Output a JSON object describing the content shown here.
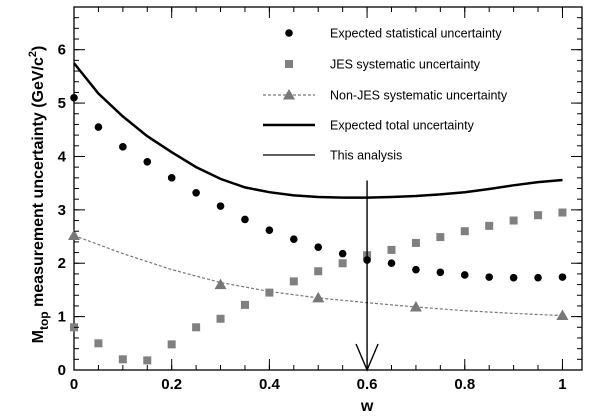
{
  "chart_data": {
    "type": "scatter",
    "title": "",
    "xlabel": "w",
    "ylabel": "M_top measurement uncertainty (GeV/c²)",
    "ylabel_parts": {
      "main": "M",
      "subscript": "top",
      "rest": " measurement uncertainty (GeV/c",
      "superscript": "2",
      "close": ")"
    },
    "xlim": [
      0,
      1.04
    ],
    "ylim": [
      0,
      6.8
    ],
    "xticks": [
      0,
      0.2,
      0.4,
      0.6,
      0.8,
      1
    ],
    "xtick_labels": [
      "0",
      "0.2",
      "0.4",
      "0.6",
      "0.8",
      "1"
    ],
    "yticks": [
      0,
      1,
      2,
      3,
      4,
      5,
      6
    ],
    "ytick_labels": [
      "0",
      "1",
      "2",
      "3",
      "4",
      "5",
      "6"
    ],
    "grid": false,
    "legend_position": "top-right",
    "series": [
      {
        "name": "Expected statistical uncertainty",
        "style": "circle-markers",
        "color": "#000000",
        "x": [
          0,
          0.05,
          0.1,
          0.15,
          0.2,
          0.25,
          0.3,
          0.35,
          0.4,
          0.45,
          0.5,
          0.55,
          0.6,
          0.65,
          0.7,
          0.75,
          0.8,
          0.85,
          0.9,
          0.95,
          1.0
        ],
        "y": [
          5.1,
          4.55,
          4.18,
          3.9,
          3.6,
          3.32,
          3.07,
          2.82,
          2.62,
          2.45,
          2.3,
          2.18,
          2.06,
          2.0,
          1.88,
          1.83,
          1.78,
          1.74,
          1.73,
          1.73,
          1.74
        ]
      },
      {
        "name": "JES systematic uncertainty",
        "style": "square-markers",
        "color": "#808080",
        "x": [
          0,
          0.05,
          0.1,
          0.15,
          0.2,
          0.25,
          0.3,
          0.35,
          0.4,
          0.45,
          0.5,
          0.55,
          0.6,
          0.65,
          0.7,
          0.75,
          0.8,
          0.85,
          0.9,
          0.95,
          1.0
        ],
        "y": [
          0.8,
          0.5,
          0.2,
          0.18,
          0.48,
          0.8,
          0.96,
          1.22,
          1.45,
          1.66,
          1.85,
          2.0,
          2.15,
          2.25,
          2.38,
          2.49,
          2.6,
          2.7,
          2.8,
          2.9,
          2.95
        ]
      },
      {
        "name": "Non-JES systematic uncertainty",
        "style": "dashed-line-triangles",
        "color": "#777777",
        "curve_x": [
          0,
          0.1,
          0.2,
          0.3,
          0.4,
          0.5,
          0.6,
          0.7,
          0.8,
          0.9,
          1.0
        ],
        "curve_y": [
          2.52,
          2.18,
          1.88,
          1.64,
          1.47,
          1.35,
          1.26,
          1.18,
          1.11,
          1.06,
          1.02
        ],
        "marker_x": [
          0,
          0.3,
          0.5,
          0.7,
          1.0
        ],
        "marker_y": [
          2.52,
          1.6,
          1.35,
          1.18,
          1.02
        ]
      },
      {
        "name": " Expected total uncertainty",
        "style": "thick-line",
        "color": "#000000",
        "x": [
          0,
          0.05,
          0.1,
          0.15,
          0.2,
          0.25,
          0.3,
          0.35,
          0.4,
          0.45,
          0.5,
          0.55,
          0.6,
          0.65,
          0.7,
          0.75,
          0.8,
          0.85,
          0.9,
          0.95,
          1.0
        ],
        "y": [
          5.75,
          5.18,
          4.75,
          4.38,
          4.08,
          3.8,
          3.58,
          3.42,
          3.33,
          3.27,
          3.24,
          3.23,
          3.23,
          3.24,
          3.26,
          3.29,
          3.33,
          3.39,
          3.46,
          3.52,
          3.56
        ]
      },
      {
        "name": "This analysis",
        "style": "arrow",
        "color": "#000000",
        "x": 0.6,
        "y_from": 3.55,
        "y_to": 0
      }
    ]
  }
}
